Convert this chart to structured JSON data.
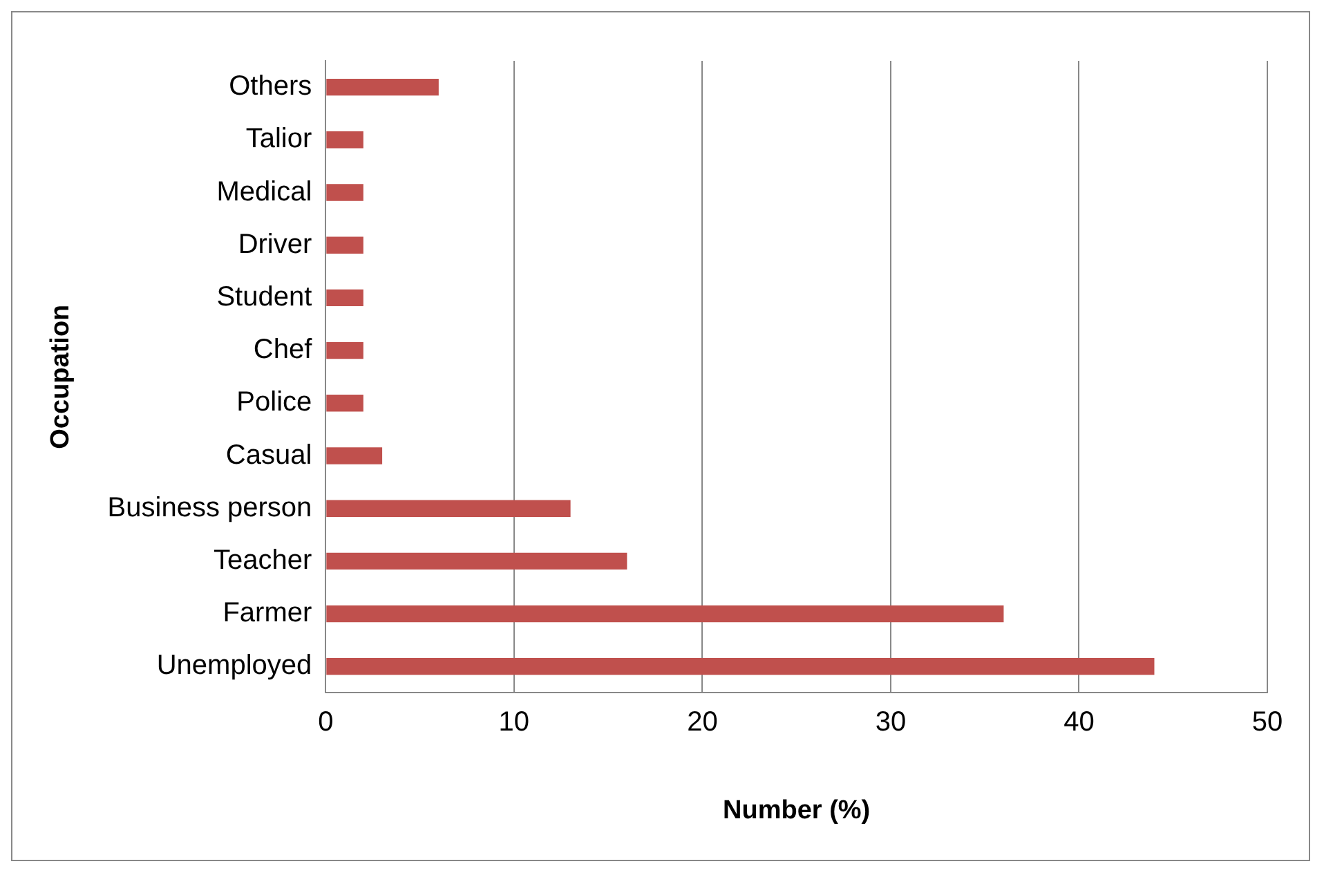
{
  "chart_data": {
    "type": "bar",
    "orientation": "horizontal",
    "xlabel": "Number (%)",
    "ylabel": "Occupation",
    "categories": [
      "Others",
      "Talior",
      "Medical",
      "Driver",
      "Student",
      "Chef",
      "Police",
      "Casual",
      "Business person",
      "Teacher",
      "Farmer",
      "Unemployed"
    ],
    "values": [
      6,
      2,
      2,
      2,
      2,
      2,
      2,
      3,
      13,
      16,
      36,
      44
    ],
    "color": "#c0504d",
    "xlim": [
      0,
      50
    ],
    "xticks": [
      0,
      10,
      20,
      30,
      40,
      50
    ],
    "grid": "x",
    "legend": false
  }
}
